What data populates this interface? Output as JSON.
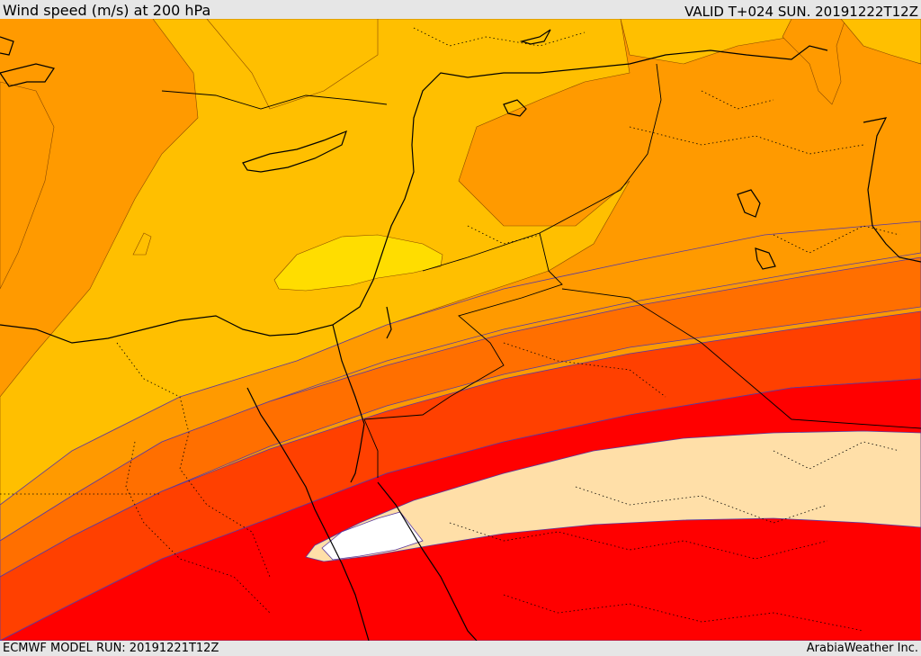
{
  "header": {
    "title": "Wind speed (m/s) at 200 hPa",
    "valid": "VALID T+024 SUN. 20191222T12Z"
  },
  "footer": {
    "model_run": "ECMWF MODEL RUN: 20191221T12Z",
    "credit": "ArabiaWeather Inc."
  },
  "map": {
    "variable": "wind speed",
    "level": "200 hPa",
    "shading_colors": {
      "light_orange": "#ffbf00",
      "orange": "#ff9a00",
      "dark_orange": "#ff6f00",
      "orange_red": "#ff4000",
      "red": "#ff0000",
      "peach": "#ffdfa8",
      "yellow": "#ffdd00",
      "white": "#ffffff"
    }
  }
}
